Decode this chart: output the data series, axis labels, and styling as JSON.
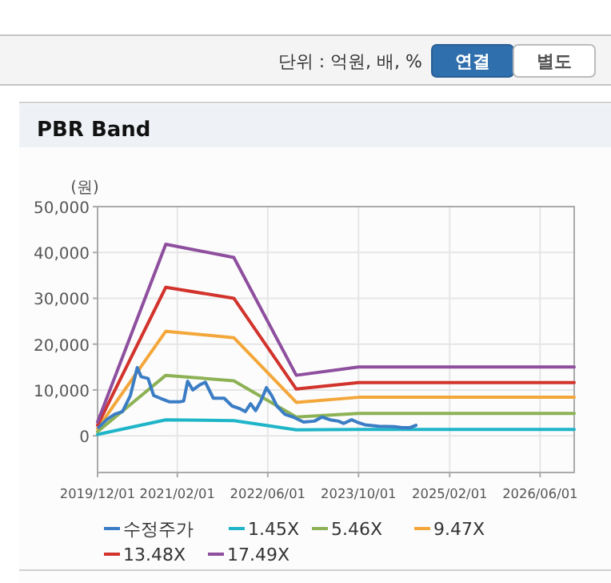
{
  "chart_data": {
    "type": "line",
    "title": "PBR Band",
    "ylabel": "(원)",
    "annotations": [
      "단위 : 억원, 배, %",
      "연결",
      "별도"
    ],
    "xlim": [
      "2019-12-01",
      "2026-12-01"
    ],
    "xticks": [
      {
        "value": "2019-12-01",
        "label": "2019/12/01"
      },
      {
        "value": "2021-02-01",
        "label": "2021/02/01"
      },
      {
        "value": "2022-06-01",
        "label": "2022/06/01"
      },
      {
        "value": "2023-10-01",
        "label": "2023/10/01"
      },
      {
        "value": "2025-02-01",
        "label": "2025/02/01"
      },
      {
        "value": "2026-06-01",
        "label": "2026/06/01"
      }
    ],
    "ylim": [
      -8000,
      50000
    ],
    "yticks": [
      {
        "value": 0,
        "label": "0"
      },
      {
        "value": 10000,
        "label": "10,000"
      },
      {
        "value": 20000,
        "label": "20,000"
      },
      {
        "value": 30000,
        "label": "30,000"
      },
      {
        "value": 40000,
        "label": "40,000"
      },
      {
        "value": 50000,
        "label": "50,000"
      }
    ],
    "grid": true,
    "legend": "bottom",
    "marker": "none",
    "line_style": "solid",
    "series": [
      {
        "name": "수정주가",
        "color": "#3b7dc4",
        "x": [
          "2019-12-07",
          "2020-01-18",
          "2020-03-01",
          "2020-04-13",
          "2020-05-25",
          "2020-07-01",
          "2020-07-22",
          "2020-08-28",
          "2020-09-27",
          "2020-11-01",
          "2020-12-22",
          "2021-02-10",
          "2021-03-07",
          "2021-03-28",
          "2021-04-25",
          "2021-06-01",
          "2021-07-01",
          "2021-08-13",
          "2021-10-10",
          "2021-11-22",
          "2022-01-03",
          "2022-02-01",
          "2022-03-01",
          "2022-03-28",
          "2022-04-25",
          "2022-05-25",
          "2022-06-22",
          "2022-07-20",
          "2022-09-01",
          "2022-10-15",
          "2022-12-10",
          "2023-02-06",
          "2023-03-19",
          "2023-05-01",
          "2023-06-15",
          "2023-07-13",
          "2023-08-25",
          "2023-09-22",
          "2023-11-04",
          "2024-01-16",
          "2024-04-10",
          "2024-05-22",
          "2024-07-04",
          "2024-08-04"
        ],
        "values": [
          1800,
          3500,
          4700,
          5300,
          8800,
          14900,
          12900,
          12500,
          8800,
          8200,
          7400,
          7400,
          7600,
          11900,
          10000,
          11100,
          11700,
          8200,
          8200,
          6500,
          5900,
          5300,
          7000,
          5500,
          7600,
          10500,
          8800,
          6500,
          4700,
          4100,
          3000,
          3200,
          4100,
          3500,
          3200,
          2700,
          3500,
          3000,
          2400,
          2100,
          2000,
          1800,
          1800,
          2300
        ]
      },
      {
        "name": "1.45X",
        "color": "#1fb5c8",
        "x": [
          "2019-12-01",
          "2020-12-01",
          "2021-12-01",
          "2022-11-01",
          "2023-10-01",
          "2026-12-01"
        ],
        "values": [
          300,
          3500,
          3300,
          1300,
          1400,
          1400
        ]
      },
      {
        "name": "5.46X",
        "color": "#8db255",
        "x": [
          "2019-12-01",
          "2020-12-01",
          "2021-12-01",
          "2022-11-01",
          "2023-10-01",
          "2026-12-01"
        ],
        "values": [
          900,
          13200,
          12000,
          4100,
          4900,
          4900
        ]
      },
      {
        "name": "9.47X",
        "color": "#f3a73a",
        "x": [
          "2019-12-01",
          "2020-12-01",
          "2021-12-01",
          "2022-11-01",
          "2023-10-01",
          "2026-12-01"
        ],
        "values": [
          1600,
          22800,
          21400,
          7300,
          8400,
          8400
        ]
      },
      {
        "name": "13.48X",
        "color": "#d2332c",
        "x": [
          "2019-12-01",
          "2020-12-01",
          "2021-12-01",
          "2022-11-01",
          "2023-10-01",
          "2026-12-01"
        ],
        "values": [
          2300,
          32400,
          30000,
          10200,
          11600,
          11600
        ]
      },
      {
        "name": "17.49X",
        "color": "#8e4f9e",
        "x": [
          "2019-12-01",
          "2020-12-01",
          "2021-12-01",
          "2022-11-01",
          "2023-10-01",
          "2026-12-01"
        ],
        "values": [
          3000,
          41800,
          38900,
          13200,
          15000,
          15000
        ]
      }
    ]
  }
}
